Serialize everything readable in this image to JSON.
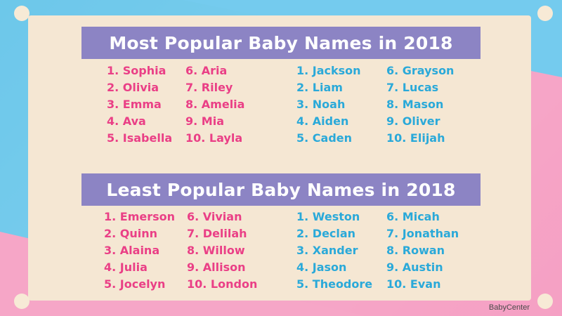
{
  "colors": {
    "girl": "#ea3f86",
    "boy": "#2aa9d9",
    "banner": "#8c84c4",
    "card": "#f5e7d3"
  },
  "most": {
    "title": "Most Popular Baby Names in 2018",
    "girls_col1": [
      "1. Sophia",
      "2. Olivia",
      "3. Emma",
      "4. Ava",
      "5. Isabella"
    ],
    "girls_col2": [
      "6. Aria",
      "7. Riley",
      "8. Amelia",
      "9. Mia",
      "10. Layla"
    ],
    "boys_col1": [
      "1. Jackson",
      "2. Liam",
      "3. Noah",
      "4. Aiden",
      "5. Caden"
    ],
    "boys_col2": [
      "6. Grayson",
      "7. Lucas",
      "8. Mason",
      "9. Oliver",
      "10. Elijah"
    ]
  },
  "least": {
    "title": "Least Popular Baby Names in 2018",
    "girls_col1": [
      "1. Emerson",
      "2. Quinn",
      "3. Alaina",
      "4. Julia",
      "5. Jocelyn"
    ],
    "girls_col2": [
      "6. Vivian",
      "7. Delilah",
      "8. Willow",
      "9. Allison",
      "10. London"
    ],
    "boys_col1": [
      "1. Weston",
      "2. Declan",
      "3. Xander",
      "4. Jason",
      "5. Theodore"
    ],
    "boys_col2": [
      "6. Micah",
      "7. Jonathan",
      "8. Rowan",
      "9. Austin",
      "10. Evan"
    ]
  },
  "brand": "BabyCenter"
}
